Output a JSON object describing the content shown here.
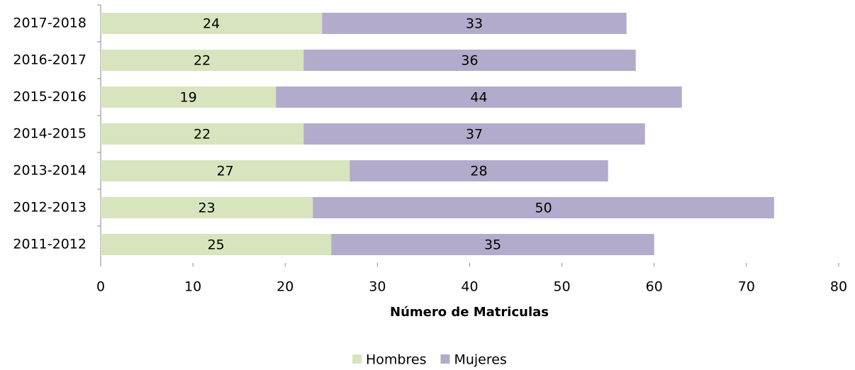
{
  "chart_data": {
    "type": "stacked-barh",
    "categories": [
      "2017-2018",
      "2016-2017",
      "2015-2016",
      "2014-2015",
      "2013-2014",
      "2012-2013",
      "2011-2012"
    ],
    "series": [
      {
        "name": "Hombres",
        "color": "#d7e4bd",
        "values": [
          24,
          22,
          19,
          22,
          27,
          23,
          25
        ]
      },
      {
        "name": "Mujeres",
        "color": "#b3abcb",
        "values": [
          33,
          36,
          44,
          37,
          28,
          50,
          35
        ]
      }
    ],
    "xlabel": "Número de Matriculas",
    "xlim": [
      0,
      80
    ],
    "xticks": [
      0,
      10,
      20,
      30,
      40,
      50,
      60,
      70,
      80
    ],
    "legend": "bottom"
  }
}
